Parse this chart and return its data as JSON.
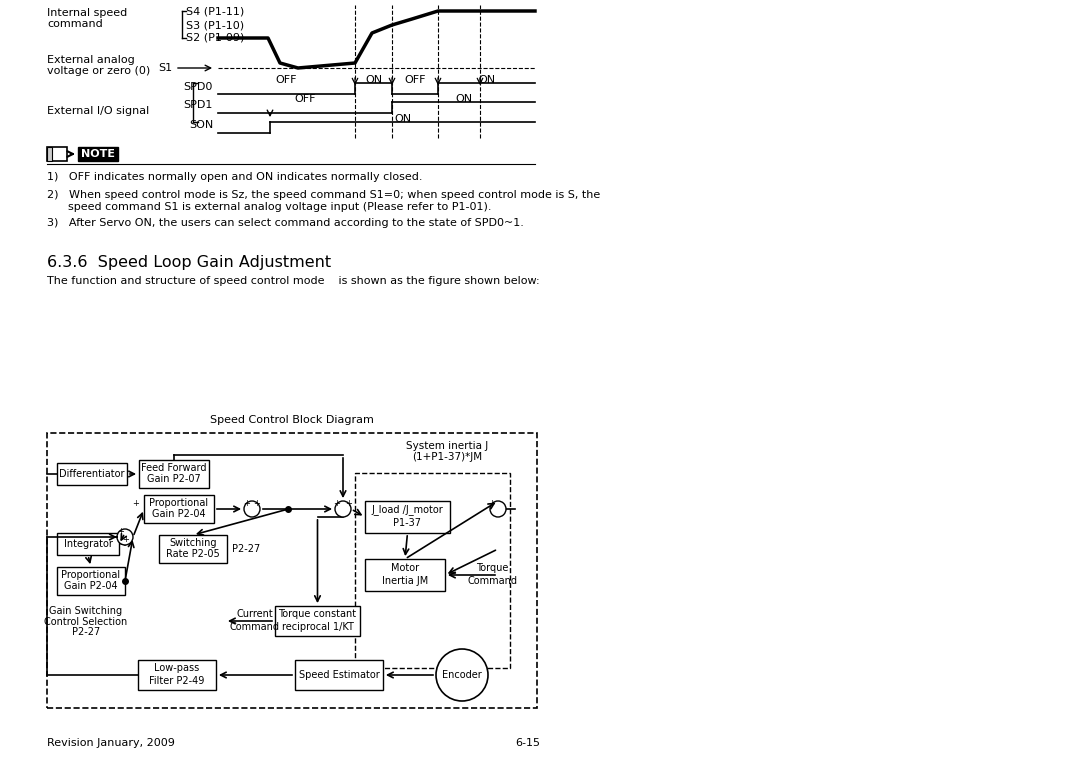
{
  "bg_color": "#ffffff",
  "page_width": 10.8,
  "page_height": 7.63,
  "note_text_1": "1)   OFF indicates normally open and ON indicates normally closed.",
  "note_text_2a": "2)   When speed control mode is Sz, the speed command S1=0; when speed control mode is S, the",
  "note_text_2b": "      speed command S1 is external analog voltage input (Please refer to P1-01).",
  "note_text_3": "3)   After Servo ON, the users can select command according to the state of SPD0~1.",
  "section_title": "6.3.6  Speed Loop Gain Adjustment",
  "section_body": "The function and structure of speed control mode    is shown as the figure shown below:",
  "block_diagram_title": "Speed Control Block Diagram",
  "footer_left": "Revision January, 2009",
  "footer_right": "6-15"
}
